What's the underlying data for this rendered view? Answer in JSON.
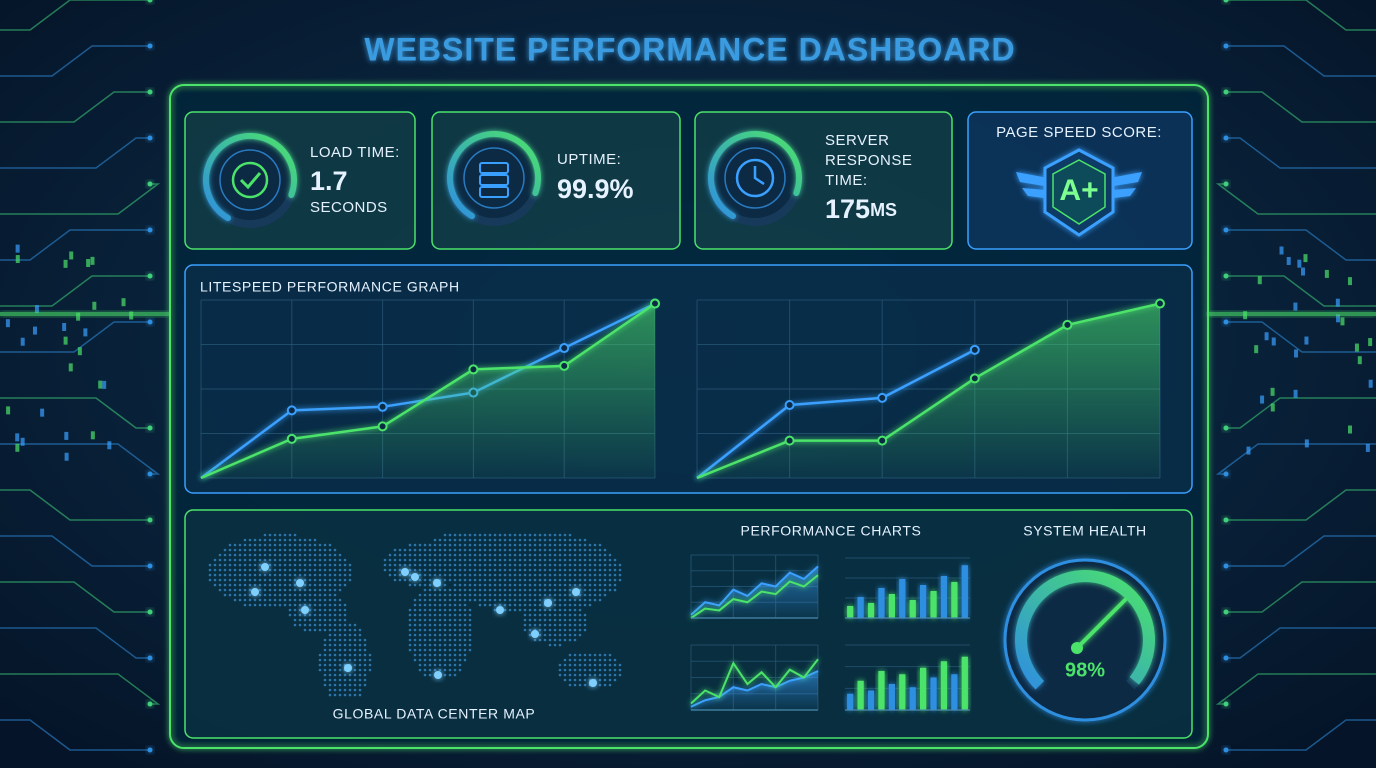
{
  "header": {
    "title": "WEBSITE PERFORMANCE DASHBOARD"
  },
  "kpis": [
    {
      "label": "LOAD TIME:",
      "value": "1.7",
      "unit": "SECONDS"
    },
    {
      "label": "UPTIME:",
      "value": "99.9%"
    },
    {
      "label": "SERVER RESPONSE TIME:",
      "value": "175",
      "unit": "MS"
    },
    {
      "label": "PAGE SPEED SCORE:",
      "value": "A+"
    }
  ],
  "panels": {
    "performance_graph": "LITESPEED PERFORMANCE GRAPH",
    "performance_charts": "PERFORMANCE CHARTS",
    "map": "GLOBAL DATA CENTER MAP"
  },
  "chart_data": [
    {
      "type": "line",
      "categories": [
        null,
        null,
        null,
        null,
        null,
        null
      ],
      "ylim": [
        0,
        100
      ],
      "grid": true,
      "markers": true,
      "series": [
        {
          "color": "#3aa0ff",
          "values": [
            0,
            38,
            40,
            48,
            73,
            98
          ]
        },
        {
          "color": "#4be36a",
          "fill": true,
          "values": [
            0,
            22,
            29,
            61,
            63,
            98
          ]
        }
      ]
    },
    {
      "type": "line",
      "categories": [
        null,
        null,
        null,
        null,
        null,
        null
      ],
      "ylim": [
        0,
        100
      ],
      "grid": true,
      "markers": true,
      "series": [
        {
          "color": "#3aa0ff",
          "values": [
            0,
            41,
            45,
            72,
            null,
            null
          ]
        },
        {
          "color": "#4be36a",
          "fill": true,
          "values": [
            0,
            21,
            21,
            56,
            86,
            98
          ]
        }
      ]
    },
    {
      "type": "line",
      "categories": [
        null,
        null,
        null,
        null,
        null,
        null,
        null,
        null,
        null,
        null
      ],
      "ylim": [
        0,
        100
      ],
      "grid": true,
      "series": [
        {
          "color": "#3aa0ff",
          "fill": true,
          "values": [
            5,
            25,
            20,
            45,
            35,
            55,
            50,
            72,
            62,
            82
          ]
        },
        {
          "color": "#4be36a",
          "values": [
            0,
            15,
            12,
            30,
            25,
            42,
            38,
            58,
            50,
            68
          ]
        }
      ]
    },
    {
      "type": "bar",
      "categories": [
        null,
        null,
        null,
        null,
        null,
        null,
        null,
        null,
        null,
        null,
        null,
        null
      ],
      "ylim": [
        0,
        100
      ],
      "grid": true,
      "values": [
        20,
        35,
        25,
        50,
        40,
        65,
        30,
        55,
        45,
        70,
        60,
        88
      ],
      "colors": [
        "#4be36a",
        "#2f8fe0",
        "#4be36a",
        "#2f8fe0",
        "#4be36a",
        "#2f8fe0",
        "#4be36a",
        "#2f8fe0",
        "#4be36a",
        "#2f8fe0",
        "#4be36a",
        "#2f8fe0"
      ]
    },
    {
      "type": "line",
      "categories": [
        null,
        null,
        null,
        null,
        null,
        null,
        null,
        null,
        null,
        null
      ],
      "ylim": [
        0,
        100
      ],
      "grid": true,
      "series": [
        {
          "color": "#3aa0ff",
          "fill": true,
          "values": [
            5,
            15,
            20,
            35,
            30,
            40,
            35,
            45,
            50,
            60
          ]
        },
        {
          "color": "#4be36a",
          "values": [
            10,
            30,
            20,
            72,
            40,
            58,
            35,
            62,
            50,
            78
          ]
        }
      ]
    },
    {
      "type": "bar",
      "categories": [
        null,
        null,
        null,
        null,
        null,
        null,
        null,
        null,
        null,
        null,
        null,
        null
      ],
      "ylim": [
        0,
        100
      ],
      "grid": true,
      "values": [
        25,
        45,
        30,
        60,
        40,
        55,
        35,
        65,
        50,
        75,
        55,
        82
      ],
      "colors": [
        "#2f8fe0",
        "#4be36a",
        "#2f8fe0",
        "#4be36a",
        "#2f8fe0",
        "#4be36a",
        "#2f8fe0",
        "#4be36a",
        "#2f8fe0",
        "#4be36a",
        "#2f8fe0",
        "#4be36a"
      ]
    },
    {
      "type": "gauge",
      "title": "SYSTEM HEALTH",
      "ylim": [
        0,
        100
      ],
      "values": [
        98
      ],
      "value_labels": [
        "98%"
      ]
    }
  ]
}
